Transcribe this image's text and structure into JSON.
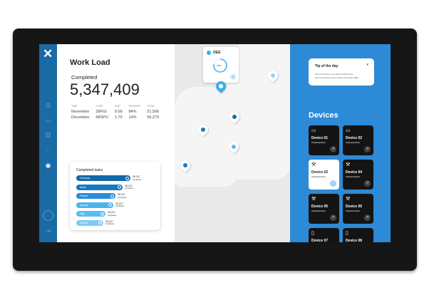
{
  "sidebar": {
    "items": [
      "settings-icon",
      "tablet-icon",
      "chart-icon",
      "heart-icon",
      "location-icon",
      "user-icon",
      "logout-icon"
    ],
    "accent": "#1a6aa6"
  },
  "workload": {
    "title": "Work Load",
    "completed_label": "Completed",
    "completed_value": "5,347,409",
    "columns": [
      "TIME",
      "CODE",
      "UNIT",
      "PERCENT",
      "TOTAL"
    ],
    "rows": [
      [
        "November",
        "39FGI",
        "0.58",
        "84%",
        "21,568"
      ],
      [
        "December",
        "68SPU",
        "1.70",
        "14%",
        "56,273"
      ]
    ]
  },
  "tasks": {
    "title": "Completed tasks",
    "items": [
      {
        "label": "Germany",
        "value": "38,247",
        "sub": "Completed",
        "color": "#1468a8",
        "pct": 100
      },
      {
        "label": "Spain",
        "value": "38,247",
        "sub": "Completed",
        "color": "#1a78bf",
        "pct": 85
      },
      {
        "label": "Poland",
        "value": "38,247",
        "sub": "Completed",
        "color": "#2a8cd2",
        "pct": 72
      },
      {
        "label": "Norway",
        "value": "38,247",
        "sub": "Completed",
        "color": "#4ab3ea",
        "pct": 68
      },
      {
        "label": "Italy",
        "value": "38,247",
        "sub": "Completed",
        "color": "#5cbcf0",
        "pct": 54
      },
      {
        "label": "Finland",
        "value": "38,247",
        "sub": "Completed",
        "color": "#7ccaf3",
        "pct": 50
      }
    ]
  },
  "map": {
    "oee_label": "OEE",
    "oee_value": "78%",
    "oee_progress": 0.78
  },
  "tip": {
    "title": "Tip of the day",
    "lines": [
      "Tap on a device to see device performance.",
      "Tap on the arrow to go to device information data."
    ]
  },
  "devices": {
    "title": "Devices",
    "items": [
      {
        "name": "Device 01",
        "sub": "Characteristics",
        "selected": false
      },
      {
        "name": "Device 02",
        "sub": "Characteristics",
        "selected": false
      },
      {
        "name": "Device 03",
        "sub": "Characteristics",
        "selected": true
      },
      {
        "name": "Device 04",
        "sub": "Characteristics",
        "selected": false
      },
      {
        "name": "Device 05",
        "sub": "Characteristics",
        "selected": false
      },
      {
        "name": "Device 06",
        "sub": "Characteristics",
        "selected": false
      },
      {
        "name": "Device 07",
        "sub": "Characteristics",
        "selected": false
      },
      {
        "name": "Device 08",
        "sub": "Characteristics",
        "selected": false
      }
    ]
  }
}
